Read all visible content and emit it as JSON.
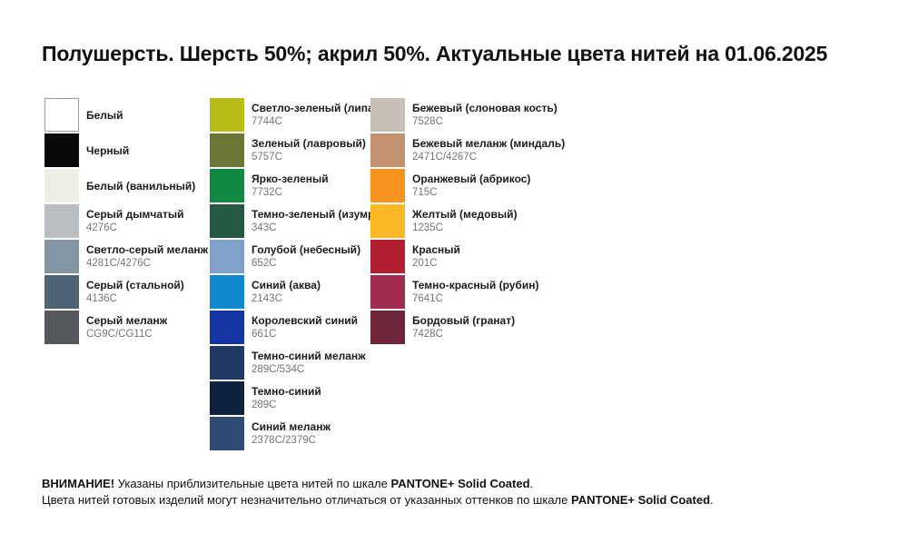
{
  "title": "Полушерсть. Шерсть 50%; акрил 50%. Актуальные цвета нитей на 01.06.2025",
  "columns": [
    {
      "swatches": [
        {
          "name": "Белый",
          "code": "",
          "color": "#ffffff",
          "border": true
        },
        {
          "name": "Черный",
          "code": "",
          "color": "#0a0a0a",
          "border": false
        },
        {
          "name": "Белый (ванильный)",
          "code": "",
          "color": "#efeee4",
          "border": false
        },
        {
          "name": "Серый дымчатый",
          "code": "4276C",
          "color": "#b9bec2",
          "border": false
        },
        {
          "name": "Светло-серый меланж",
          "code": "4281C/4276C",
          "color": "#8296a3",
          "border": false
        },
        {
          "name": "Серый (стальной)",
          "code": "4136C",
          "color": "#4e6475",
          "border": false
        },
        {
          "name": "Серый меланж",
          "code": "CG9C/CG11C",
          "color": "#55585c",
          "border": false
        }
      ]
    },
    {
      "swatches": [
        {
          "name": "Светло-зеленый (липа)",
          "code": "7744C",
          "color": "#b7bd16",
          "border": false
        },
        {
          "name": "Зеленый (лавровый)",
          "code": "5757C",
          "color": "#6e7637",
          "border": false
        },
        {
          "name": "Ярко-зеленый",
          "code": "7732C",
          "color": "#108a43",
          "border": false
        },
        {
          "name": "Темно-зеленый (изумруд)",
          "code": "343C",
          "color": "#265943",
          "border": false
        },
        {
          "name": "Голубой (небесный)",
          "code": "652C",
          "color": "#81a0ca",
          "border": false
        },
        {
          "name": "Синий (аква)",
          "code": "2143C",
          "color": "#1189cf",
          "border": false
        },
        {
          "name": "Королевский синий",
          "code": "661C",
          "color": "#1635a5",
          "border": false
        },
        {
          "name": "Темно-синий меланж",
          "code": "289C/534C",
          "color": "#203a64",
          "border": false
        },
        {
          "name": "Темно-синий",
          "code": "289C",
          "color": "#0f2240",
          "border": false
        },
        {
          "name": "Синий меланж",
          "code": "2378C/2379C",
          "color": "#304b76",
          "border": false
        }
      ]
    },
    {
      "swatches": [
        {
          "name": "Бежевый (слоновая кость)",
          "code": "7528C",
          "color": "#c7bfb4",
          "border": false
        },
        {
          "name": "Бежевый меланж (миндаль)",
          "code": "2471C/4267C",
          "color": "#c2916f",
          "border": false
        },
        {
          "name": "Оранжевый (абрикос)",
          "code": "715C",
          "color": "#f79420",
          "border": false
        },
        {
          "name": "Желтый (медовый)",
          "code": "1235C",
          "color": "#fdb827",
          "border": false
        },
        {
          "name": "Красный",
          "code": "201C",
          "color": "#b11f30",
          "border": false
        },
        {
          "name": "Темно-красный (рубин)",
          "code": "7641C",
          "color": "#a32c51",
          "border": false
        },
        {
          "name": "Бордовый (гранат)",
          "code": "7428C",
          "color": "#6e2538",
          "border": false
        }
      ]
    }
  ],
  "footer": {
    "warning_label": "ВНИМАНИЕ!",
    "line1_text": " Указаны приблизительные цвета нитей по шкале ",
    "line1_bold": "PANTONE+ Solid Coated",
    "line1_period": ".",
    "line2_text": "Цвета нитей готовых изделий могут незначительно отличаться от указанных оттенков по шкале ",
    "line2_bold": "PANTONE+ Solid Coated",
    "line2_period": "."
  }
}
